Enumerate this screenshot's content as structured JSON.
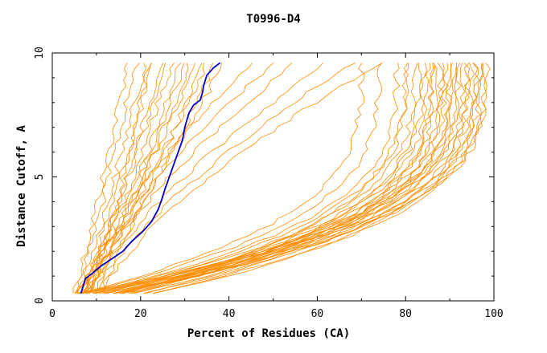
{
  "chart_data": {
    "type": "line",
    "title": "T0996-D4",
    "xlabel": "Percent of Residues (CA)",
    "ylabel": "Distance Cutoff, A",
    "xlim": [
      0,
      100
    ],
    "ylim": [
      0,
      10
    ],
    "x_ticks": [
      "0",
      "20",
      "40",
      "60",
      "80",
      "100"
    ],
    "y_ticks": [
      "0",
      "5",
      "10"
    ],
    "grid": false,
    "colors": {
      "models": "#ff8c00",
      "highlight": "#0000cd",
      "axes": "#000000"
    },
    "highlight_series": {
      "x": [
        6.5,
        7.0,
        7.5,
        9.0,
        11.0,
        13.5,
        16.0,
        18.0,
        20.5,
        22.5,
        24.0,
        24.8,
        25.5,
        26.5,
        27.5,
        28.5,
        29.5,
        30.0,
        30.5,
        31.0,
        32.0,
        33.5,
        34.0,
        34.3,
        35.0,
        36.5,
        38.0
      ],
      "y": [
        0.3,
        0.6,
        0.9,
        1.1,
        1.4,
        1.7,
        2.0,
        2.4,
        2.8,
        3.2,
        3.7,
        4.1,
        4.5,
        5.0,
        5.5,
        6.0,
        6.5,
        7.0,
        7.3,
        7.6,
        7.9,
        8.1,
        8.4,
        8.7,
        9.1,
        9.4,
        9.6
      ]
    },
    "series_groups": [
      {
        "group": "steep-left",
        "count": 16,
        "start_x": [
          4.5,
          5.0,
          5.5,
          6.0,
          6.5,
          7.0,
          7.5,
          8.0,
          5.2,
          6.2,
          7.2,
          4.8,
          8.5,
          5.8,
          6.8,
          9.0
        ],
        "end_x": [
          17,
          19,
          21,
          23,
          25,
          27,
          29,
          31,
          33,
          35,
          37,
          39,
          22,
          26,
          30,
          34
        ],
        "exponent": 0.85
      },
      {
        "group": "middle",
        "count": 6,
        "start_x": [
          7,
          8,
          9,
          10,
          11,
          12
        ],
        "end_x": [
          45,
          50,
          55,
          62,
          68,
          74
        ],
        "exponent": 1.4
      },
      {
        "group": "right-convex",
        "count": 30,
        "start_x": [
          5.5,
          6.5,
          7.5,
          8.5,
          9.5,
          10.5,
          11.5,
          12.5,
          13.5,
          14.5,
          15.5,
          16.5,
          6.0,
          7.0,
          8.0,
          9.0,
          10.0,
          11.0,
          12.0,
          13.0,
          14.0,
          15.0,
          16.0,
          17.0,
          18.0,
          19.0,
          20.0,
          21.0,
          22.0,
          23.0
        ],
        "end_x": [
          70,
          74,
          78,
          80,
          82,
          84,
          85,
          86,
          87,
          88,
          89,
          90,
          91,
          92,
          93,
          94,
          95,
          96,
          97,
          98,
          98.5,
          80,
          83,
          86,
          88,
          90,
          92,
          94,
          96,
          97
        ],
        "exponent": 3.2
      }
    ]
  }
}
